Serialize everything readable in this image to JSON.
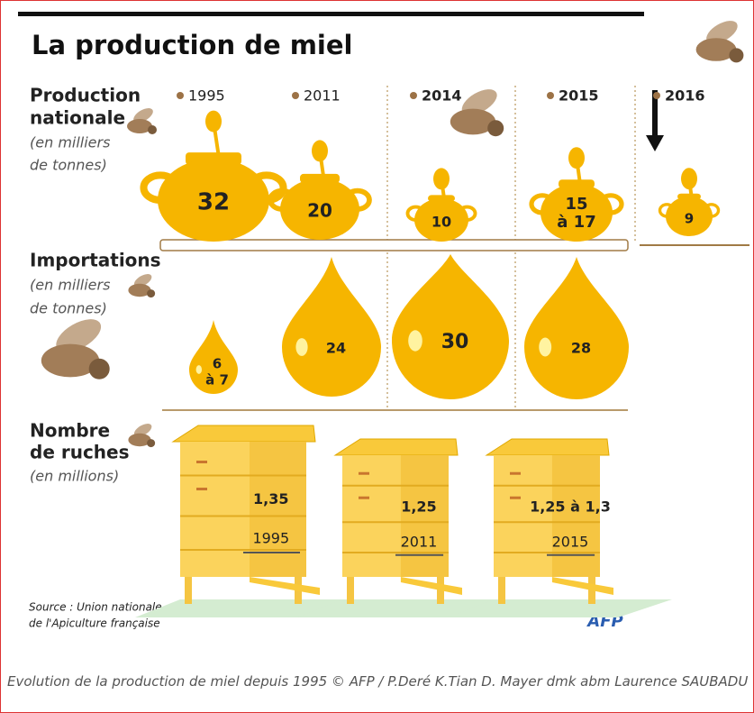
{
  "title": "La production de miel",
  "production": {
    "label": [
      "Production",
      "nationale"
    ],
    "unit": [
      "(en milliers",
      "de tonnes)"
    ],
    "years": [
      "1995",
      "2011",
      "2014",
      "2015",
      "2016"
    ],
    "values": [
      "32",
      "20",
      "10",
      [
        "15",
        "à 17"
      ],
      "9"
    ]
  },
  "importations": {
    "label": "Importations",
    "unit": [
      "(en milliers",
      "de tonnes)"
    ],
    "values": [
      [
        "6",
        "à 7"
      ],
      "24",
      "30",
      "28"
    ]
  },
  "ruches": {
    "label": [
      "Nombre",
      "de ruches"
    ],
    "unit": "(en millions)",
    "values": [
      "1,35",
      "1,25",
      "1,25 à 1,3"
    ],
    "years": [
      "1995",
      "2011",
      "2015"
    ]
  },
  "source": [
    "Source : Union nationale",
    "de l'Apiculture française"
  ],
  "agency": "AFP",
  "caption": "Evolution de la production de miel depuis 1995 © AFP / P.Deré K.Tian D. Mayer dmk abm Laurence SAUBADU"
}
